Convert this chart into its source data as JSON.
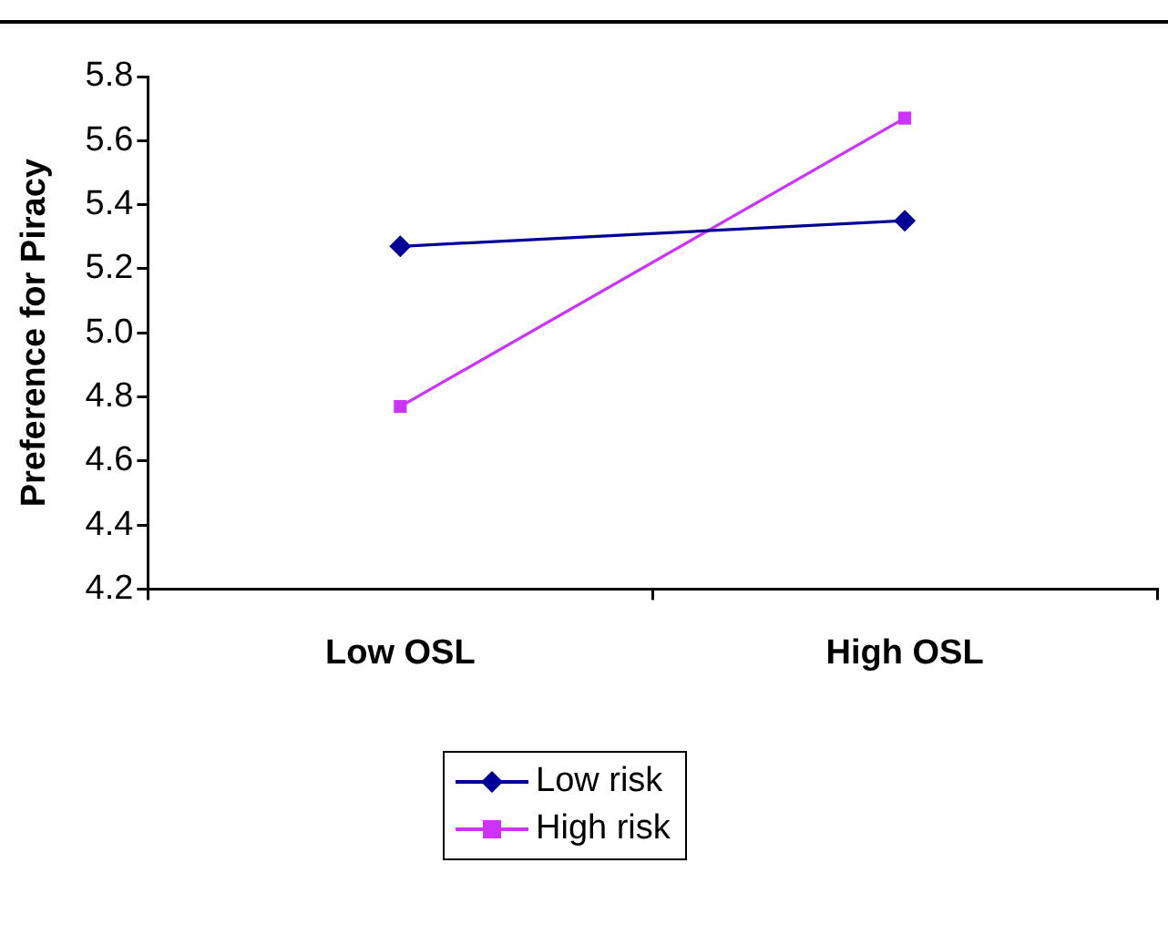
{
  "chart_data": {
    "type": "line",
    "ylabel": "Preference for Piracy",
    "categories": [
      "Low OSL",
      "High OSL"
    ],
    "series": [
      {
        "name": "Low risk",
        "color": "#000099",
        "values": [
          5.27,
          5.35
        ],
        "marker": "diamond"
      },
      {
        "name": "High risk",
        "color": "#cc33ff",
        "values": [
          4.77,
          5.67
        ],
        "marker": "square"
      }
    ],
    "ylim": [
      4.2,
      5.8
    ],
    "yticks": [
      4.2,
      4.4,
      4.6,
      4.8,
      {
        "value": 5,
        "label": "5.0"
      },
      5.2,
      5.4,
      5.6,
      5.8
    ],
    "grid": false,
    "legend": "bottom",
    "line_style": "solid"
  }
}
